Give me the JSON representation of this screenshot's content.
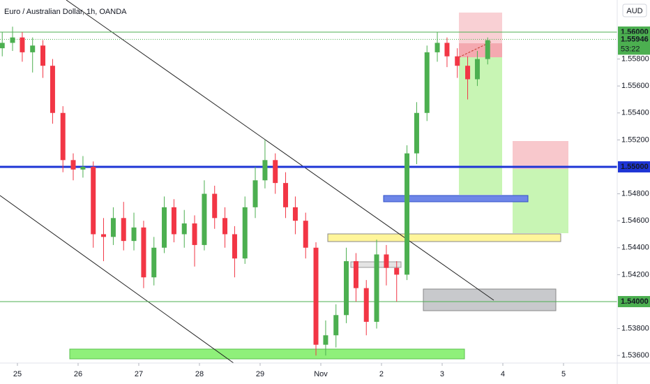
{
  "chart_data": {
    "type": "candlestick",
    "title": "Euro / Australian Dollar, 1h, OANDA",
    "currency": "AUD",
    "up_color": "#4caf50",
    "down_color": "#f23645",
    "xlim": [
      -0.287,
      9.885
    ],
    "ylim": [
      1.53544,
      1.56238
    ],
    "xticks": [
      {
        "value": 0,
        "label": "25"
      },
      {
        "value": 1,
        "label": "26"
      },
      {
        "value": 2,
        "label": "27"
      },
      {
        "value": 3,
        "label": "28"
      },
      {
        "value": 4,
        "label": "29"
      },
      {
        "value": 5,
        "label": "Nov"
      },
      {
        "value": 6,
        "label": "2"
      },
      {
        "value": 7,
        "label": "3"
      },
      {
        "value": 8,
        "label": "4"
      },
      {
        "value": 9,
        "label": "5"
      }
    ],
    "yticks": [
      {
        "value": 1.558,
        "label": "1.55800"
      },
      {
        "value": 1.556,
        "label": "1.55600"
      },
      {
        "value": 1.554,
        "label": "1.55400"
      },
      {
        "value": 1.552,
        "label": "1.55200"
      },
      {
        "value": 1.548,
        "label": "1.54800"
      },
      {
        "value": 1.546,
        "label": "1.54600"
      },
      {
        "value": 1.544,
        "label": "1.54400"
      },
      {
        "value": 1.542,
        "label": "1.54200"
      },
      {
        "value": 1.538,
        "label": "1.53800"
      },
      {
        "value": 1.536,
        "label": "1.53600"
      }
    ],
    "levels": [
      {
        "value": 1.56,
        "label": "1.56000",
        "color": "#4caf50",
        "width": 1
      },
      {
        "value": 1.55,
        "label": "1.55000",
        "color": "#1e35d6",
        "width": 3
      },
      {
        "value": 1.54,
        "label": "1.54000",
        "color": "#4caf50",
        "width": 1
      }
    ],
    "last_price": {
      "value": 1.55946,
      "label": "1.55946",
      "countdown": "53:22",
      "color": "#4caf50"
    },
    "x": [
      -0.25,
      -0.08,
      0.08,
      0.25,
      0.42,
      0.58,
      0.75,
      0.92,
      1.08,
      1.25,
      1.42,
      1.58,
      1.75,
      1.92,
      2.08,
      2.25,
      2.42,
      2.58,
      2.75,
      2.92,
      3.08,
      3.25,
      3.42,
      3.58,
      3.75,
      3.92,
      4.08,
      4.25,
      4.42,
      4.58,
      4.75,
      4.92,
      5.08,
      5.25,
      5.42,
      5.58,
      5.75,
      5.92,
      6.08,
      6.25,
      6.42,
      6.58,
      6.75,
      6.92,
      7.08,
      7.25,
      7.42,
      7.58,
      7.75
    ],
    "open": [
      1.5588,
      1.5592,
      1.5596,
      1.5585,
      1.559,
      1.5575,
      1.554,
      1.5505,
      1.5498,
      1.55,
      1.545,
      1.5448,
      1.5462,
      1.5445,
      1.5455,
      1.5418,
      1.544,
      1.547,
      1.545,
      1.5458,
      1.5442,
      1.548,
      1.5462,
      1.545,
      1.5432,
      1.547,
      1.549,
      1.5505,
      1.5488,
      1.547,
      1.546,
      1.544,
      1.5368,
      1.5375,
      1.539,
      1.543,
      1.541,
      1.5385,
      1.5435,
      1.5425,
      1.542,
      1.551,
      1.554,
      1.5585,
      1.5592,
      1.5582,
      1.5575,
      1.5565,
      1.558
    ],
    "high": [
      1.56,
      1.5604,
      1.56,
      1.5596,
      1.5594,
      1.558,
      1.5545,
      1.551,
      1.5508,
      1.5504,
      1.5462,
      1.547,
      1.5474,
      1.5466,
      1.546,
      1.5448,
      1.5478,
      1.5476,
      1.5468,
      1.5464,
      1.549,
      1.5486,
      1.547,
      1.5456,
      1.5478,
      1.55,
      1.552,
      1.551,
      1.5496,
      1.5478,
      1.5466,
      1.5444,
      1.5386,
      1.5398,
      1.544,
      1.5436,
      1.5416,
      1.5446,
      1.5442,
      1.543,
      1.5516,
      1.5548,
      1.559,
      1.56,
      1.5596,
      1.5588,
      1.5582,
      1.5586,
      1.5596
    ],
    "low": [
      1.5582,
      1.5586,
      1.5578,
      1.557,
      1.5566,
      1.5532,
      1.5496,
      1.549,
      1.5492,
      1.544,
      1.543,
      1.5442,
      1.5438,
      1.5438,
      1.541,
      1.5412,
      1.5436,
      1.5444,
      1.544,
      1.5426,
      1.5438,
      1.5454,
      1.544,
      1.5418,
      1.5428,
      1.5462,
      1.5484,
      1.548,
      1.5462,
      1.545,
      1.5432,
      1.536,
      1.536,
      1.5366,
      1.5384,
      1.54,
      1.5375,
      1.538,
      1.5412,
      1.54,
      1.5416,
      1.5502,
      1.5534,
      1.5578,
      1.5574,
      1.5566,
      1.555,
      1.556,
      1.5576
    ],
    "close": [
      1.5592,
      1.5596,
      1.5585,
      1.559,
      1.5575,
      1.554,
      1.5505,
      1.5498,
      1.55,
      1.545,
      1.5448,
      1.5462,
      1.5445,
      1.5455,
      1.5418,
      1.544,
      1.547,
      1.545,
      1.5458,
      1.5442,
      1.548,
      1.5462,
      1.545,
      1.5432,
      1.547,
      1.549,
      1.5505,
      1.5488,
      1.547,
      1.546,
      1.544,
      1.5368,
      1.5375,
      1.539,
      1.543,
      1.541,
      1.5385,
      1.5435,
      1.5425,
      1.542,
      1.551,
      1.554,
      1.5585,
      1.5592,
      1.5582,
      1.5575,
      1.5565,
      1.558,
      1.5594
    ]
  }
}
